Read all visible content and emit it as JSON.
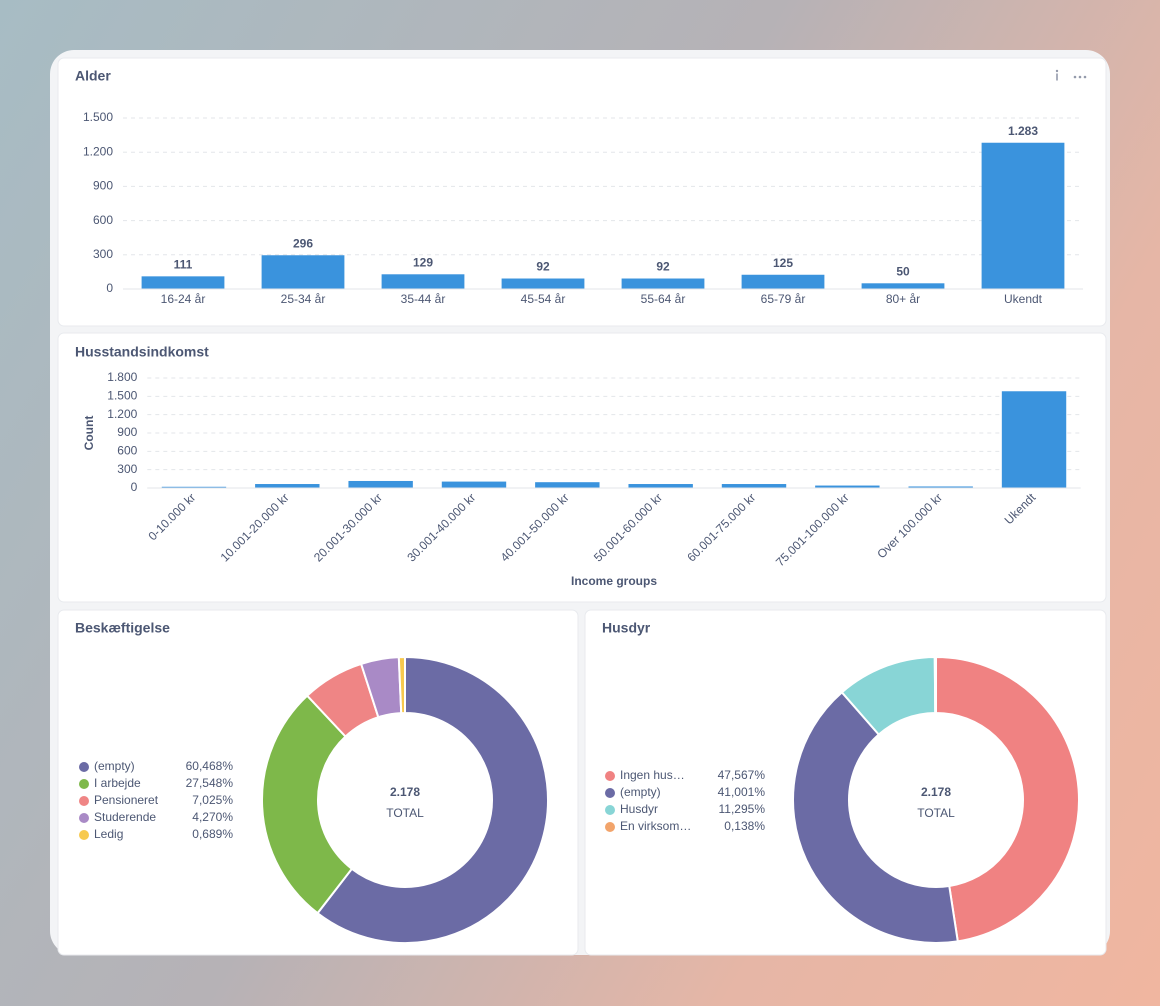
{
  "chart_data": [
    {
      "type": "bar",
      "title": "Alder",
      "categories": [
        "16-24 år",
        "25-34 år",
        "35-44 år",
        "45-54 år",
        "55-64 år",
        "65-79 år",
        "80+ år",
        "Ukendt"
      ],
      "values": [
        111,
        296,
        129,
        92,
        92,
        125,
        50,
        1283
      ],
      "value_labels": [
        "111",
        "296",
        "129",
        "92",
        "92",
        "125",
        "50",
        "1.283"
      ],
      "color": "#3a93dd",
      "ylim": [
        0,
        1500
      ],
      "yticks": [
        0,
        300,
        600,
        900,
        {
          "value": 1200,
          "label": "1.200"
        },
        {
          "value": 1500,
          "label": "1.500"
        }
      ],
      "grid": true
    },
    {
      "type": "bar",
      "title": "Husstandsindkomst",
      "ylabel": "Count",
      "xlabel": "Income groups",
      "categories": [
        "0-10.000 kr",
        "10.001-20.000 kr",
        "20.001-30.000 kr",
        "30.001-40.000 kr",
        "40.001-50.000 kr",
        "50.001-60.000 kr",
        "60.001-75.000 kr",
        "75.001-100.000 kr",
        "Over 100.000 kr",
        "Ukendt"
      ],
      "values": [
        20,
        65,
        115,
        105,
        95,
        65,
        65,
        40,
        25,
        1583
      ],
      "color": "#3a93dd",
      "ylim": [
        0,
        1800
      ],
      "yticks": [
        0,
        300,
        600,
        900,
        {
          "value": 1200,
          "label": "1.200"
        },
        {
          "value": 1500,
          "label": "1.500"
        },
        {
          "value": 1800,
          "label": "1.800"
        }
      ],
      "grid": true
    },
    {
      "type": "pie",
      "title": "Beskæftigelse",
      "categories": [
        "(empty)",
        "I arbejde",
        "Pensioneret",
        "Studerende",
        "Ledig"
      ],
      "values": [
        60.468,
        27.548,
        7.025,
        4.27,
        0.689
      ],
      "value_labels": [
        "60,468%",
        "27,548%",
        "7,025%",
        "4,270%",
        "0,689%"
      ],
      "colors": [
        "#6b6ba5",
        "#7eb84a",
        "#ef8585",
        "#a98ac6",
        "#f7c94e"
      ],
      "total": {
        "value": 2178,
        "label": "2.178"
      },
      "total_caption": "TOTAL"
    },
    {
      "type": "pie",
      "title": "Husdyr",
      "categories": [
        "Ingen hus…",
        "(empty)",
        "Husdyr",
        "En virksom…"
      ],
      "values": [
        47.567,
        41.001,
        11.295,
        0.138
      ],
      "value_labels": [
        "47,567%",
        "41,001%",
        "11,295%",
        "0,138%"
      ],
      "colors": [
        "#f08282",
        "#6b6ba5",
        "#88d5d6",
        "#f2a46b"
      ],
      "total": {
        "value": 2178,
        "label": "2.178"
      },
      "total_caption": "TOTAL"
    }
  ]
}
